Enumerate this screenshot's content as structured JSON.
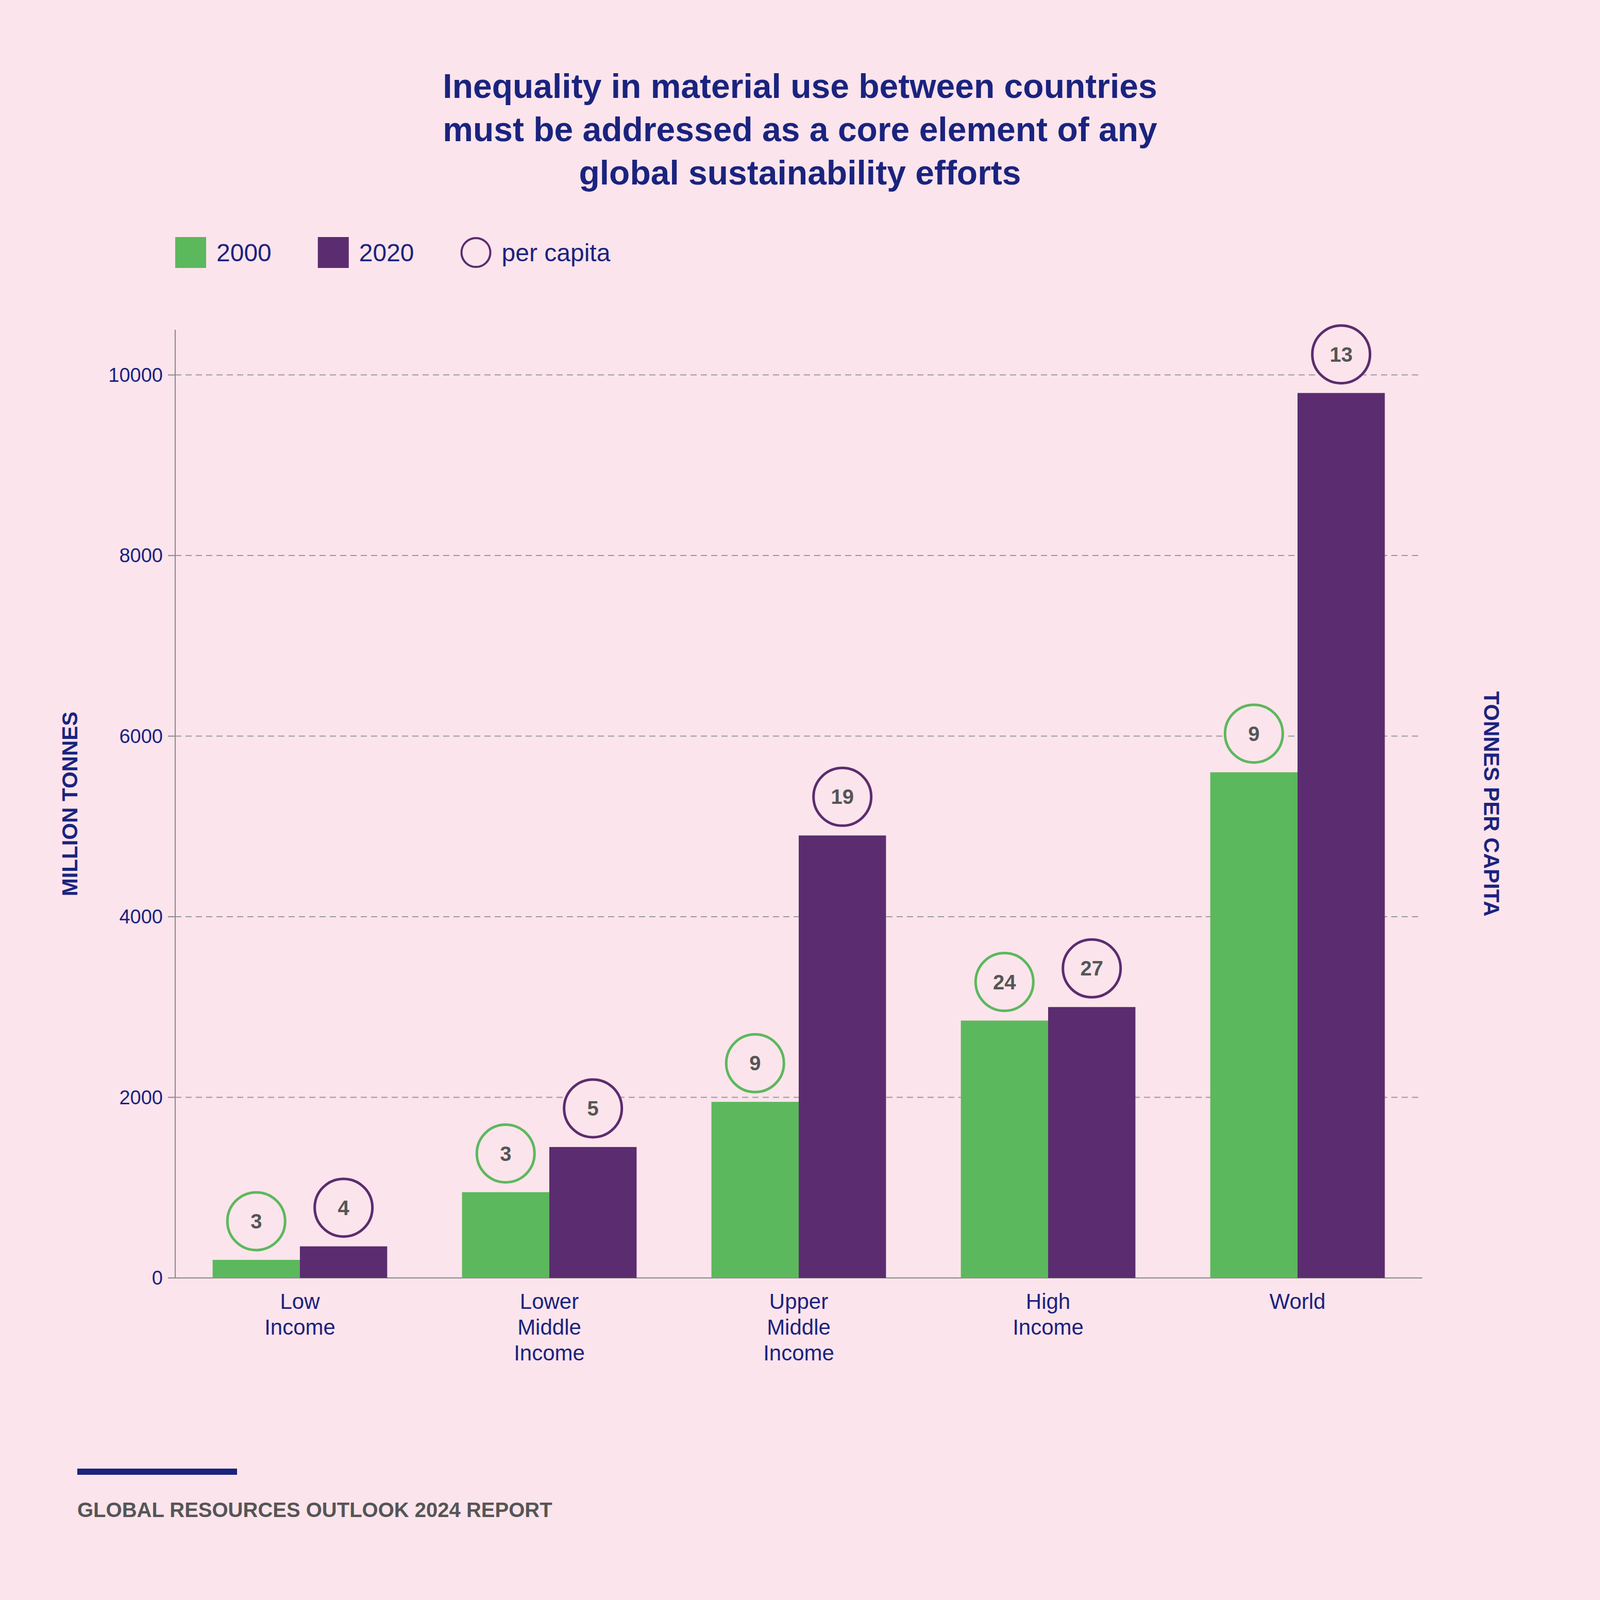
{
  "chart_data": {
    "type": "bar",
    "title": "Inequality in material use between countries\nmust be addressed as a core element of any\nglobal sustainability efforts",
    "categories": [
      "Low\nIncome",
      "Lower\nMiddle\nIncome",
      "Upper\nMiddle\nIncome",
      "High\nIncome",
      "World"
    ],
    "series": [
      {
        "name": "2000",
        "color": "#5cb85c",
        "values": [
          200,
          950,
          1950,
          2850,
          5600
        ],
        "per_capita": [
          3,
          3,
          9,
          24,
          9
        ]
      },
      {
        "name": "2020",
        "color": "#5b2c6f",
        "values": [
          350,
          1450,
          4900,
          3000,
          9800
        ],
        "per_capita": [
          4,
          5,
          19,
          27,
          13
        ]
      }
    ],
    "per_capita_legend": "per capita",
    "ylabel": "MILLION TONNES",
    "y2label": "TONNES PER CAPITA",
    "ylim": [
      0,
      10500
    ],
    "yticks": [
      0,
      2000,
      4000,
      6000,
      8000,
      10000
    ],
    "grid": true,
    "legend": "upper left",
    "footer": "GLOBAL RESOURCES OUTLOOK 2024 REPORT"
  }
}
